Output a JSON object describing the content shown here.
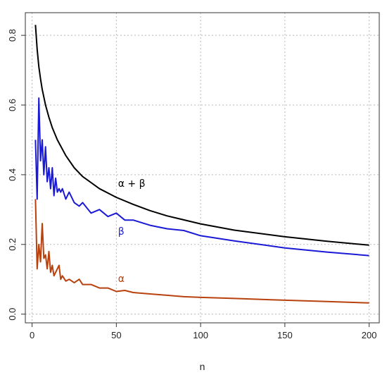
{
  "chart_data": {
    "type": "line",
    "title": "",
    "xlabel": "n",
    "ylabel": "",
    "xlim": [
      -4,
      206
    ],
    "ylim": [
      -0.025,
      0.865
    ],
    "x_ticks": [
      0,
      50,
      100,
      150,
      200
    ],
    "y_ticks": [
      0.0,
      0.2,
      0.4,
      0.6,
      0.8
    ],
    "x_tick_labels": [
      "0",
      "50",
      "100",
      "150",
      "200"
    ],
    "y_tick_labels": [
      "0.0",
      "0.2",
      "0.4",
      "0.6",
      "0.8"
    ],
    "grid": true,
    "series": [
      {
        "name": "α + β",
        "color": "#000000",
        "x": [
          2,
          3,
          4,
          5,
          6,
          8,
          10,
          12,
          15,
          20,
          25,
          30,
          40,
          50,
          60,
          70,
          80,
          100,
          120,
          150,
          175,
          200
        ],
        "y": [
          0.83,
          0.76,
          0.71,
          0.675,
          0.645,
          0.6,
          0.565,
          0.535,
          0.5,
          0.455,
          0.42,
          0.395,
          0.36,
          0.335,
          0.315,
          0.297,
          0.282,
          0.259,
          0.241,
          0.222,
          0.209,
          0.198
        ]
      },
      {
        "name": "β",
        "color": "#1a1ad6",
        "x": [
          2,
          3,
          4,
          5,
          6,
          7,
          8,
          9,
          10,
          11,
          12,
          13,
          14,
          15,
          16,
          17,
          18,
          20,
          22,
          25,
          28,
          30,
          35,
          40,
          45,
          50,
          55,
          60,
          70,
          80,
          90,
          100,
          120,
          150,
          175,
          200
        ],
        "y": [
          0.5,
          0.33,
          0.62,
          0.44,
          0.5,
          0.4,
          0.48,
          0.38,
          0.42,
          0.36,
          0.42,
          0.34,
          0.39,
          0.35,
          0.36,
          0.35,
          0.36,
          0.33,
          0.35,
          0.32,
          0.31,
          0.32,
          0.29,
          0.3,
          0.28,
          0.29,
          0.27,
          0.27,
          0.255,
          0.245,
          0.24,
          0.225,
          0.21,
          0.19,
          0.178,
          0.168
        ]
      },
      {
        "name": "α",
        "color": "#b8410e",
        "x": [
          2,
          3,
          4,
          5,
          6,
          7,
          8,
          9,
          10,
          11,
          12,
          13,
          14,
          15,
          16,
          17,
          18,
          20,
          22,
          25,
          28,
          30,
          35,
          40,
          45,
          50,
          55,
          60,
          70,
          80,
          90,
          100,
          120,
          150,
          175,
          200
        ],
        "y": [
          0.33,
          0.13,
          0.2,
          0.15,
          0.26,
          0.16,
          0.17,
          0.13,
          0.18,
          0.12,
          0.14,
          0.11,
          0.12,
          0.13,
          0.14,
          0.1,
          0.11,
          0.095,
          0.1,
          0.09,
          0.1,
          0.085,
          0.085,
          0.075,
          0.075,
          0.065,
          0.068,
          0.062,
          0.058,
          0.054,
          0.05,
          0.048,
          0.045,
          0.04,
          0.036,
          0.032
        ]
      }
    ],
    "annotations": [
      {
        "text": "α + β",
        "x": 51,
        "y": 0.365,
        "color": "#000000"
      },
      {
        "text": "β",
        "x": 51,
        "y": 0.228,
        "color": "#1a1ad6"
      },
      {
        "text": "α",
        "x": 51,
        "y": 0.092,
        "color": "#b8410e"
      }
    ]
  }
}
